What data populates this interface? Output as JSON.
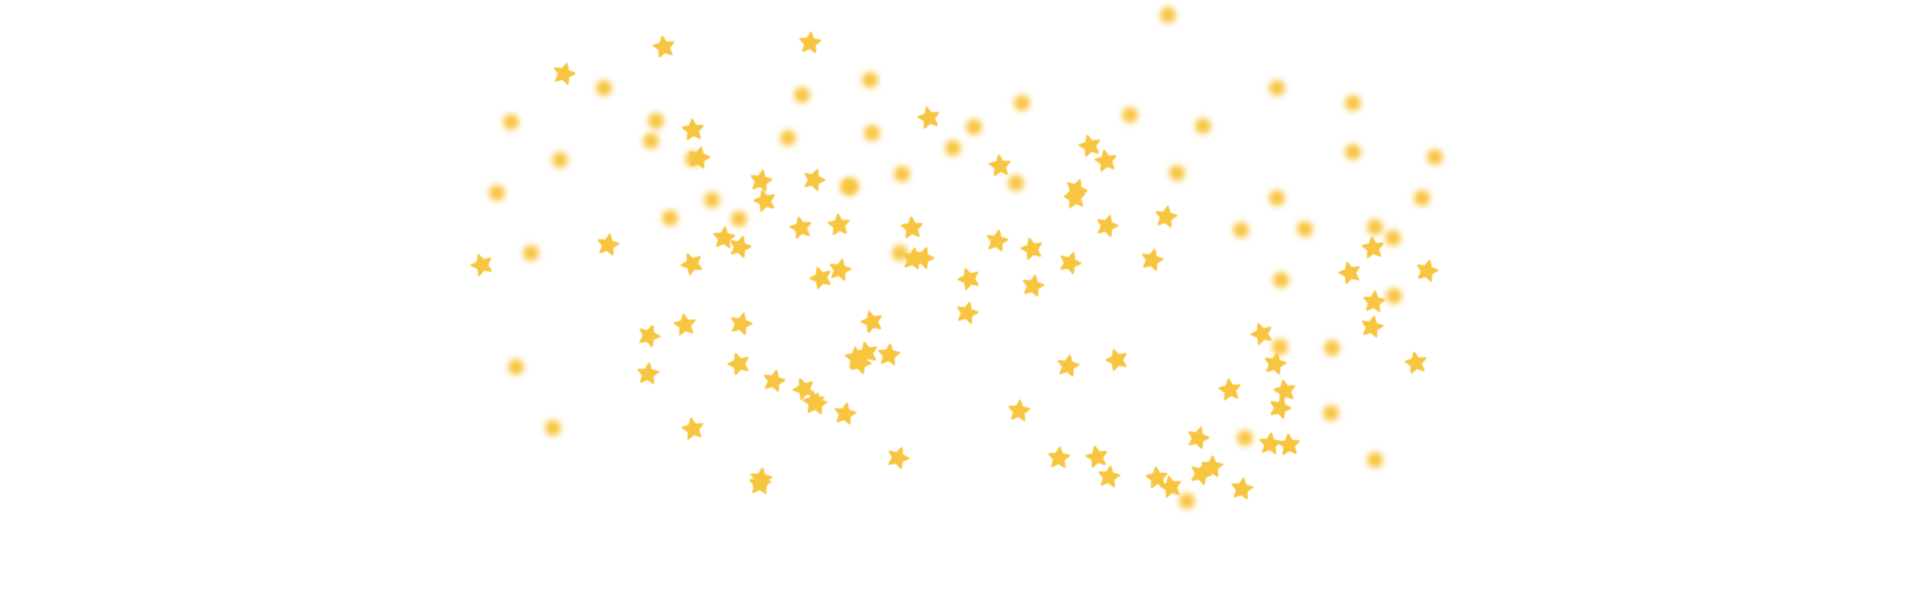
{
  "scene": {
    "background_color": "#ffffff",
    "particle_color": "#f8c540",
    "particle_types": [
      "star-icon",
      "glow-dot"
    ]
  }
}
